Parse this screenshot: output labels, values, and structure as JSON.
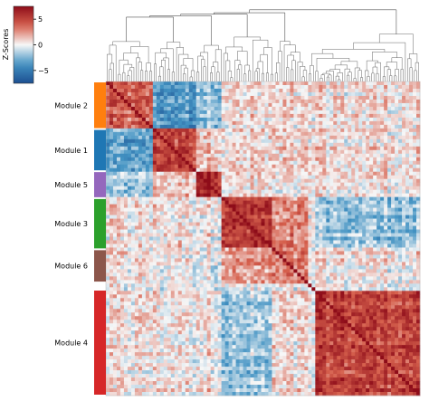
{
  "chart_data": {
    "type": "heatmap",
    "colorbar": {
      "label": "Z-Scores",
      "range": [
        -7.5,
        7.5
      ],
      "ticks": [
        5,
        0,
        -5
      ],
      "tick_labels": [
        "5",
        "0",
        "−5"
      ],
      "colormap": "diverging blue-white-red",
      "colors": {
        "low": "#1d4f91",
        "mid": "#f7f7f7",
        "high": "#8e0c19"
      }
    },
    "dendrogram": {
      "position": "top",
      "color": "#555555"
    },
    "modules": [
      {
        "name": "Module 2",
        "color": "#ff7f0e",
        "start": 0,
        "end": 53
      },
      {
        "name": "Module 1",
        "color": "#1f77b4",
        "start": 53,
        "end": 100
      },
      {
        "name": "Module 5",
        "color": "#9467bd",
        "start": 100,
        "end": 130
      },
      {
        "name": "Module 3",
        "color": "#2ca02c",
        "start": 130,
        "end": 187
      },
      {
        "name": "Module 6",
        "color": "#8c564b",
        "start": 187,
        "end": 224
      },
      {
        "name": "Module 4",
        "color": "#d62728",
        "start": 232,
        "end": 350
      }
    ],
    "matrix_size": 350,
    "block_zscore_means": {
      "order": [
        "Module 2",
        "Module 1",
        "Module 5",
        "Module 3",
        "Module 6",
        "Module 4"
      ],
      "values": [
        [
          4.0,
          -3.5,
          -2.0,
          0.5,
          0.5,
          0.5
        ],
        [
          -3.5,
          5.0,
          1.2,
          0.5,
          0.5,
          0.5
        ],
        [
          -2.0,
          1.2,
          6.0,
          0.5,
          0.0,
          0.5
        ],
        [
          0.5,
          0.5,
          0.5,
          5.5,
          2.5,
          -2.0
        ],
        [
          0.5,
          0.5,
          0.0,
          2.5,
          3.0,
          0.5
        ],
        [
          0.5,
          0.5,
          0.5,
          -2.0,
          0.5,
          5.0
        ]
      ]
    }
  }
}
